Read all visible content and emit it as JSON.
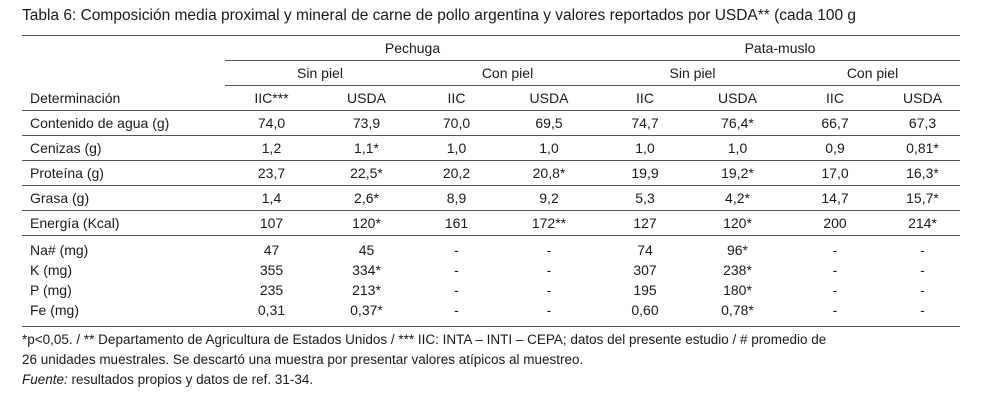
{
  "title": "Tabla 6: Composición media proximal y mineral de carne de pollo argentina y valores reportados por USDA** (cada 100 g",
  "groups": [
    "Pechuga",
    "Pata-muslo"
  ],
  "subgroups": [
    "Sin piel",
    "Con piel",
    "Sin piel",
    "Con piel"
  ],
  "columns": [
    "Determinación",
    "IIC***",
    "USDA",
    "IIC",
    "USDA",
    "IIC",
    "USDA",
    "IIC",
    "USDA"
  ],
  "rows": [
    [
      "Contenido de agua (g)",
      "74,0",
      "73,9",
      "70,0",
      "69,5",
      "74,7",
      "76,4*",
      "66,7",
      "67,3"
    ],
    [
      "Cenizas (g)",
      "1,2",
      "1,1*",
      "1,0",
      "1,0",
      "1,0",
      "1,0",
      "0,9",
      "0,81*"
    ],
    [
      "Proteína (g)",
      "23,7",
      "22,5*",
      "20,2",
      "20,8*",
      "19,9",
      "19,2*",
      "17,0",
      "16,3*"
    ],
    [
      "Grasa (g)",
      "1,4",
      "2,6*",
      "8,9",
      "9,2",
      "5,3",
      "4,2*",
      "14,7",
      "15,7*"
    ],
    [
      "Energía (Kcal)",
      "107",
      "120*",
      "161",
      "172**",
      "127",
      "120*",
      "200",
      "214*"
    ]
  ],
  "mineral_rows": [
    [
      "Na# (mg)",
      "47",
      "45",
      "-",
      "-",
      "74",
      "96*",
      "-",
      "-"
    ],
    [
      "K (mg)",
      "355",
      "334*",
      "-",
      "-",
      "307",
      "238*",
      "-",
      "-"
    ],
    [
      "P (mg)",
      "235",
      "213*",
      "-",
      "-",
      "195",
      "180*",
      "-",
      "-"
    ],
    [
      "Fe (mg)",
      "0,31",
      "0,37*",
      "-",
      "-",
      "0,60",
      "0,78*",
      "-",
      "-"
    ]
  ],
  "footnote": {
    "line1": "*p<0,05. / ** Departamento de Agricultura de Estados Unidos / *** IIC: INTA – INTI – CEPA; datos del presente estudio / # promedio de",
    "line2": "26 unidades muestrales. Se descartó una muestra por presentar valores atípicos al muestreo.",
    "source_label": "Fuente:",
    "source_text": " resultados propios y datos de ref. 31-34."
  }
}
